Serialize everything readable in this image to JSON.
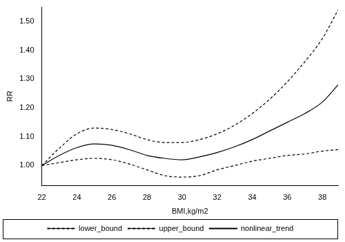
{
  "chart_data": {
    "type": "line",
    "x_label": "BMI,kg/m2",
    "y_label": "RR",
    "x": [
      22,
      23,
      24,
      25,
      26,
      27,
      28,
      29,
      30,
      31,
      32,
      33,
      34,
      35,
      36,
      37,
      38,
      38.9
    ],
    "series": [
      {
        "name": "lower_bound",
        "color": "#000000",
        "line_style": "dashed",
        "values": [
          1.0,
          1.01,
          1.02,
          1.025,
          1.02,
          1.005,
          0.985,
          0.965,
          0.96,
          0.965,
          0.985,
          1.0,
          1.015,
          1.025,
          1.035,
          1.04,
          1.05,
          1.055
        ]
      },
      {
        "name": "upper_bound",
        "color": "#000000",
        "line_style": "dashed",
        "values": [
          1.0,
          1.06,
          1.11,
          1.13,
          1.125,
          1.11,
          1.09,
          1.08,
          1.08,
          1.09,
          1.11,
          1.14,
          1.18,
          1.23,
          1.29,
          1.36,
          1.44,
          1.54
        ]
      },
      {
        "name": "nonlinear_trend",
        "color": "#000000",
        "line_style": "solid",
        "values": [
          1.0,
          1.035,
          1.062,
          1.075,
          1.07,
          1.055,
          1.035,
          1.025,
          1.02,
          1.03,
          1.045,
          1.065,
          1.09,
          1.12,
          1.15,
          1.18,
          1.22,
          1.28
        ]
      }
    ],
    "xlim": [
      22,
      38.9
    ],
    "xticks": [
      22,
      24,
      26,
      28,
      30,
      32,
      34,
      36,
      38
    ],
    "ylim": [
      0.93,
      1.55
    ],
    "yticks": [
      {
        "value": 1.0,
        "label": "1.00"
      },
      {
        "value": 1.1,
        "label": "1.10"
      },
      {
        "value": 1.2,
        "label": "1.20"
      },
      {
        "value": 1.3,
        "label": "1.30"
      },
      {
        "value": 1.4,
        "label": "1.40"
      },
      {
        "value": 1.5,
        "label": "1.50"
      }
    ],
    "grid": false,
    "legend": "bottom"
  }
}
